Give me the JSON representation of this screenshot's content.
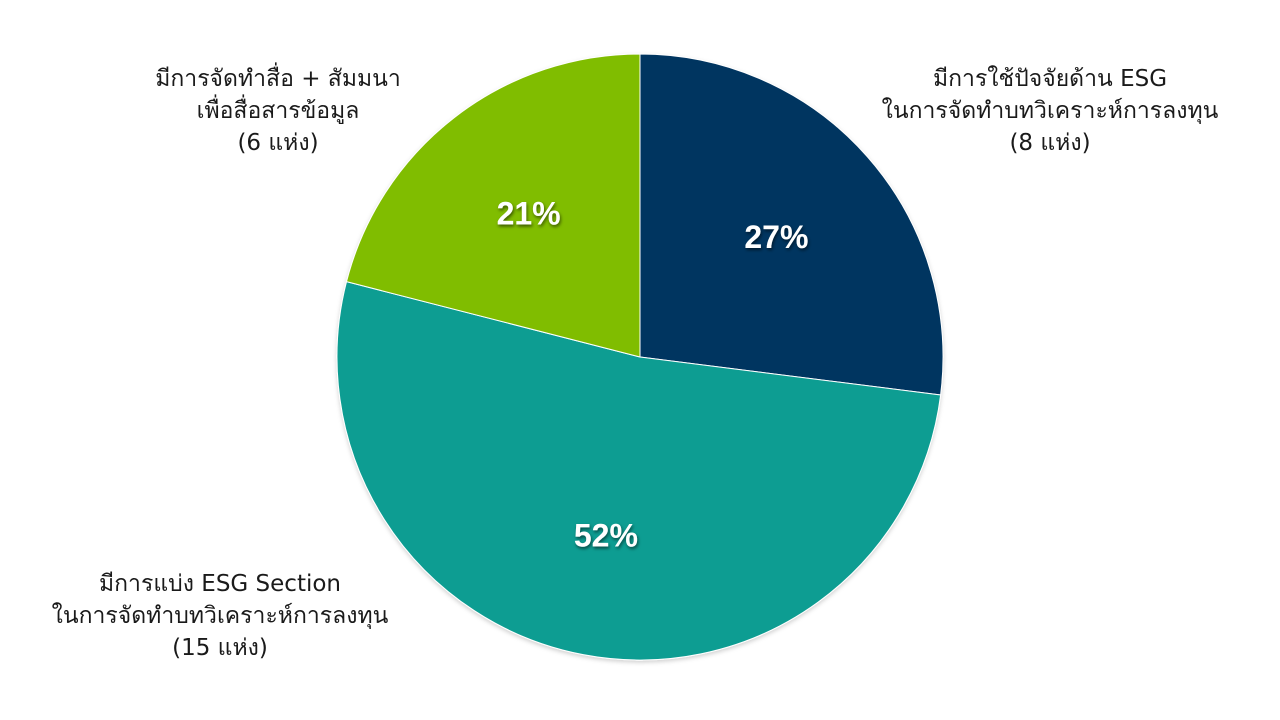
{
  "chart_data": {
    "type": "pie",
    "slices": [
      {
        "id": "esg-factors",
        "value": 27,
        "label": "27%",
        "color": "#003560",
        "callout": [
          "มีการใช้ปัจจัยด้าน ESG",
          "ในการจัดทำบทวิเคราะห์การลงทุน",
          "(8 แห่ง)"
        ]
      },
      {
        "id": "esg-section",
        "value": 52,
        "label": "52%",
        "color": "#0c9d92",
        "callout": [
          "มีการแบ่ง ESG Section",
          "ในการจัดทำบทวิเคราะห์การลงทุน",
          "(15 แห่ง)"
        ]
      },
      {
        "id": "media",
        "value": 21,
        "label": "21%",
        "color": "#80bd06",
        "callout": [
          "มีการจัดทำสื่อ + สัมมนา",
          "เพื่อสื่อสารข้อมูล",
          "(6 แห่ง)"
        ]
      }
    ],
    "start": "12 o'clock",
    "direction": "clockwise"
  }
}
